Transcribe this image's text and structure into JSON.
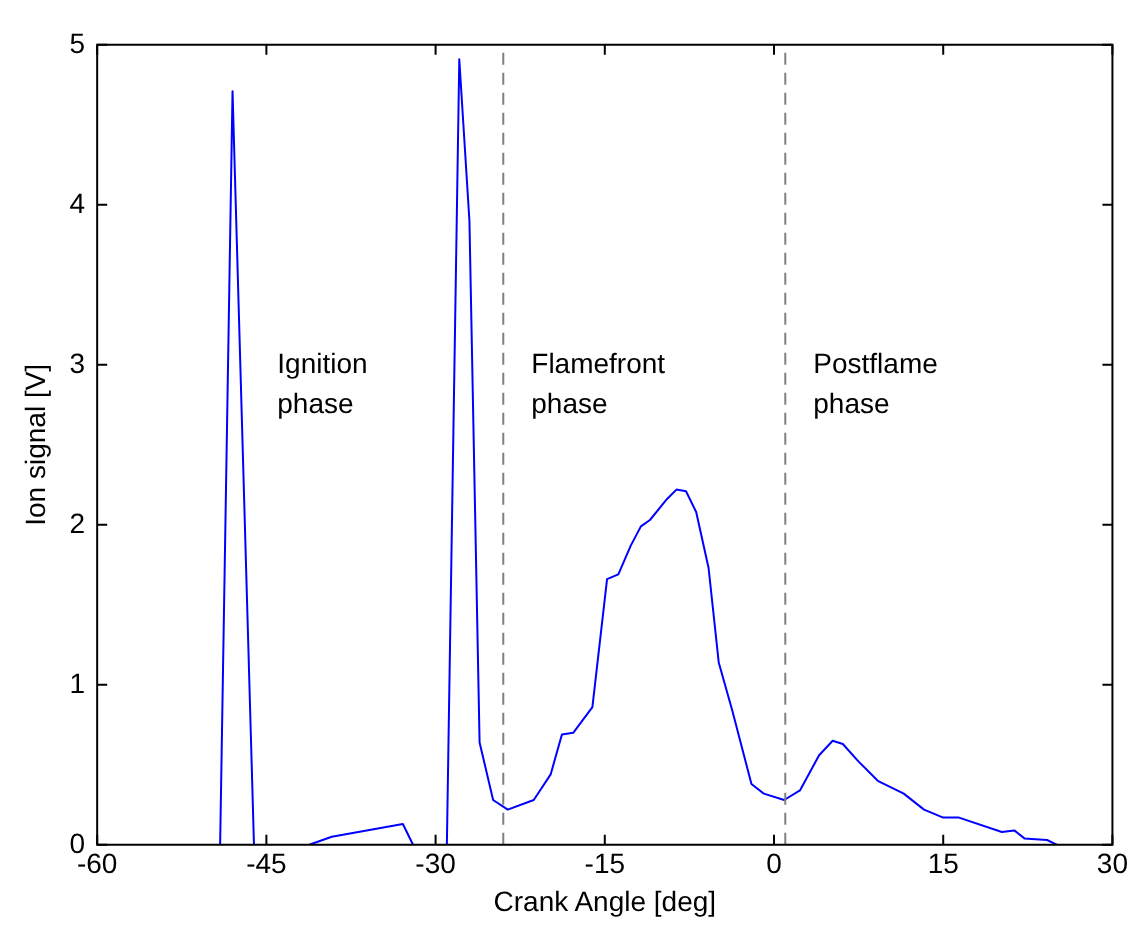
{
  "chart_data": {
    "type": "line",
    "xlabel": "Crank Angle [deg]",
    "ylabel": "Ion signal [V]",
    "xlim": [
      -60,
      30
    ],
    "xticks": [
      -60,
      -45,
      -30,
      -15,
      0,
      15,
      30
    ],
    "ylim": [
      0,
      5
    ],
    "yticks": [
      0,
      1,
      2,
      3,
      4,
      5
    ],
    "grid": false,
    "legend": false,
    "marker": "none",
    "line_style": "solid",
    "series": [
      {
        "color": "#0000ff",
        "x": [
          -49.1,
          -48.0,
          -46.1,
          -44,
          -41.2,
          -39.2,
          -32.9,
          -32.0,
          -30.5,
          -29.0,
          -27.9,
          -27.0,
          -26.1,
          -24.9,
          -23.6,
          -21.3,
          -19.8,
          -18.8,
          -17.8,
          -16.1,
          -14.8,
          -13.8,
          -12.7,
          -11.8,
          -11.0,
          -9.5,
          -8.65,
          -7.8,
          -6.9,
          -5.8,
          -4.9,
          -3.7,
          -2.0,
          -0.9,
          0.9,
          2.3,
          4.0,
          5.2,
          6.1,
          7.5,
          9.2,
          11.5,
          13.3,
          15.0,
          16.4,
          20.2,
          21.3,
          22.2,
          24.2,
          25.1
        ],
        "values": [
          0,
          4.71,
          0,
          null,
          0,
          0.05,
          0.13,
          0,
          null,
          0,
          4.91,
          3.9,
          0.64,
          0.28,
          0.22,
          0.28,
          0.44,
          0.69,
          0.7,
          0.86,
          1.66,
          1.69,
          1.87,
          1.99,
          2.03,
          2.16,
          2.22,
          2.21,
          2.08,
          1.73,
          1.14,
          0.84,
          0.38,
          0.32,
          0.28,
          0.34,
          0.56,
          0.65,
          0.63,
          0.52,
          0.4,
          0.32,
          0.22,
          0.17,
          0.17,
          0.08,
          0.09,
          0.04,
          0.03,
          0
        ]
      }
    ],
    "ref_lines": [
      {
        "axis": "x",
        "value": -24,
        "color": "#808080",
        "line_style": "dashed"
      },
      {
        "axis": "x",
        "value": 1,
        "color": "#808080",
        "line_style": "dashed"
      }
    ],
    "annotations": [
      "Ignition\nphase",
      "Flamefront\nphase",
      "Postflame\nphase"
    ]
  }
}
